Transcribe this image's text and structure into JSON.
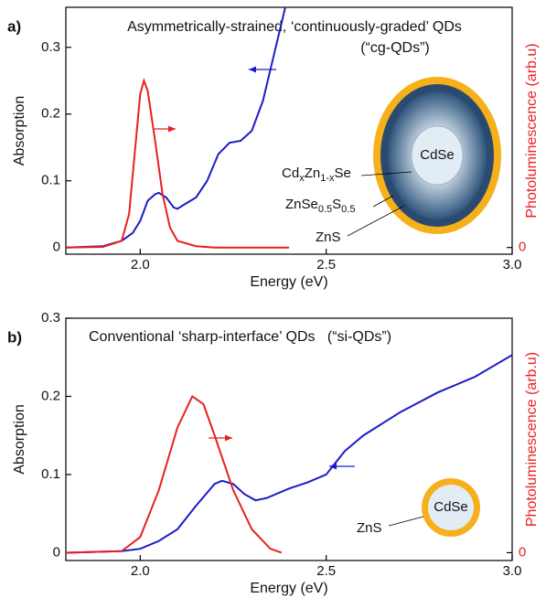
{
  "chart_data": [
    {
      "type": "line",
      "panel_label": "a)",
      "title": "Asymmetrically-strained, ‘continuously-graded’ QDs",
      "subtitle": "(“cg-QDs”)",
      "x_label": "Energy (eV)",
      "y_label": "Absorption",
      "y2_label": "Photoluminescence (arb.u)",
      "xlim": [
        1.8,
        3.0
      ],
      "xticks": [
        {
          "value": 2,
          "label": "2.0"
        },
        2.5,
        {
          "value": 3,
          "label": "3.0"
        }
      ],
      "ylim": [
        -0.01,
        0.36
      ],
      "yticks": [
        0,
        0.1,
        0.2,
        0.3
      ],
      "y2lim": [
        -0.04,
        1.44
      ],
      "y2ticks": [
        0
      ],
      "series": [
        {
          "color": "#1c1cc8",
          "x": [
            1.8,
            1.9,
            1.95,
            1.98,
            2.0,
            2.02,
            2.04,
            2.05,
            2.07,
            2.09,
            2.1,
            2.12,
            2.15,
            2.18,
            2.21,
            2.24,
            2.27,
            2.3,
            2.33,
            2.36,
            2.39
          ],
          "values": [
            0,
            0.002,
            0.01,
            0.022,
            0.04,
            0.07,
            0.08,
            0.082,
            0.075,
            0.06,
            0.058,
            0.065,
            0.075,
            0.1,
            0.14,
            0.157,
            0.16,
            0.175,
            0.22,
            0.29,
            0.36
          ]
        },
        {
          "color": "#e8201f",
          "axis": "y2",
          "x": [
            1.8,
            1.9,
            1.95,
            1.97,
            1.99,
            2.0,
            2.01,
            2.02,
            2.04,
            2.06,
            2.08,
            2.1,
            2.15,
            2.2,
            2.4
          ],
          "values": [
            0,
            0.004,
            0.04,
            0.2,
            0.68,
            0.92,
            1.0,
            0.94,
            0.64,
            0.32,
            0.12,
            0.04,
            0.008,
            0,
            0
          ]
        }
      ],
      "annotations": [
        {
          "parts": [
            "CdSe"
          ]
        },
        {
          "parts": [
            "Cd",
            "x",
            "Zn",
            "1-x",
            "Se"
          ]
        },
        {
          "parts": [
            "ZnSe",
            "0.5",
            "S",
            "0.5"
          ]
        },
        {
          "parts": [
            "ZnS"
          ]
        }
      ]
    },
    {
      "type": "line",
      "panel_label": "b)",
      "title": "Conventional ‘sharp-interface’ QDs   (“si-QDs”)",
      "x_label": "Energy (eV)",
      "y_label": "Absorption",
      "y2_label": "Photoluminescence (arb.u)",
      "xlim": [
        1.8,
        3.0
      ],
      "xticks": [
        {
          "value": 2,
          "label": "2.0"
        },
        2.5,
        {
          "value": 3,
          "label": "3.0"
        }
      ],
      "ylim": [
        -0.01,
        0.3
      ],
      "yticks": [
        0,
        0.1,
        0.2,
        0.3
      ],
      "y2lim": [
        -0.05,
        1.5
      ],
      "y2ticks": [
        0
      ],
      "series": [
        {
          "color": "#1c1cc8",
          "x": [
            1.8,
            1.95,
            2.0,
            2.05,
            2.1,
            2.15,
            2.2,
            2.22,
            2.25,
            2.28,
            2.31,
            2.34,
            2.4,
            2.45,
            2.5,
            2.55,
            2.6,
            2.7,
            2.8,
            2.9,
            3.0
          ],
          "values": [
            0,
            0.002,
            0.005,
            0.015,
            0.03,
            0.06,
            0.088,
            0.092,
            0.088,
            0.075,
            0.067,
            0.07,
            0.082,
            0.09,
            0.1,
            0.13,
            0.15,
            0.18,
            0.205,
            0.225,
            0.253
          ]
        },
        {
          "color": "#e8201f",
          "axis": "y2",
          "x": [
            1.8,
            1.95,
            2.0,
            2.05,
            2.1,
            2.14,
            2.17,
            2.2,
            2.25,
            2.3,
            2.35,
            2.38
          ],
          "values": [
            0,
            0.01,
            0.1,
            0.4,
            0.8,
            1.0,
            0.95,
            0.75,
            0.4,
            0.15,
            0.025,
            0
          ]
        }
      ],
      "annotations": [
        {
          "parts": [
            "CdSe"
          ]
        },
        {
          "parts": [
            "ZnS"
          ]
        }
      ]
    }
  ]
}
